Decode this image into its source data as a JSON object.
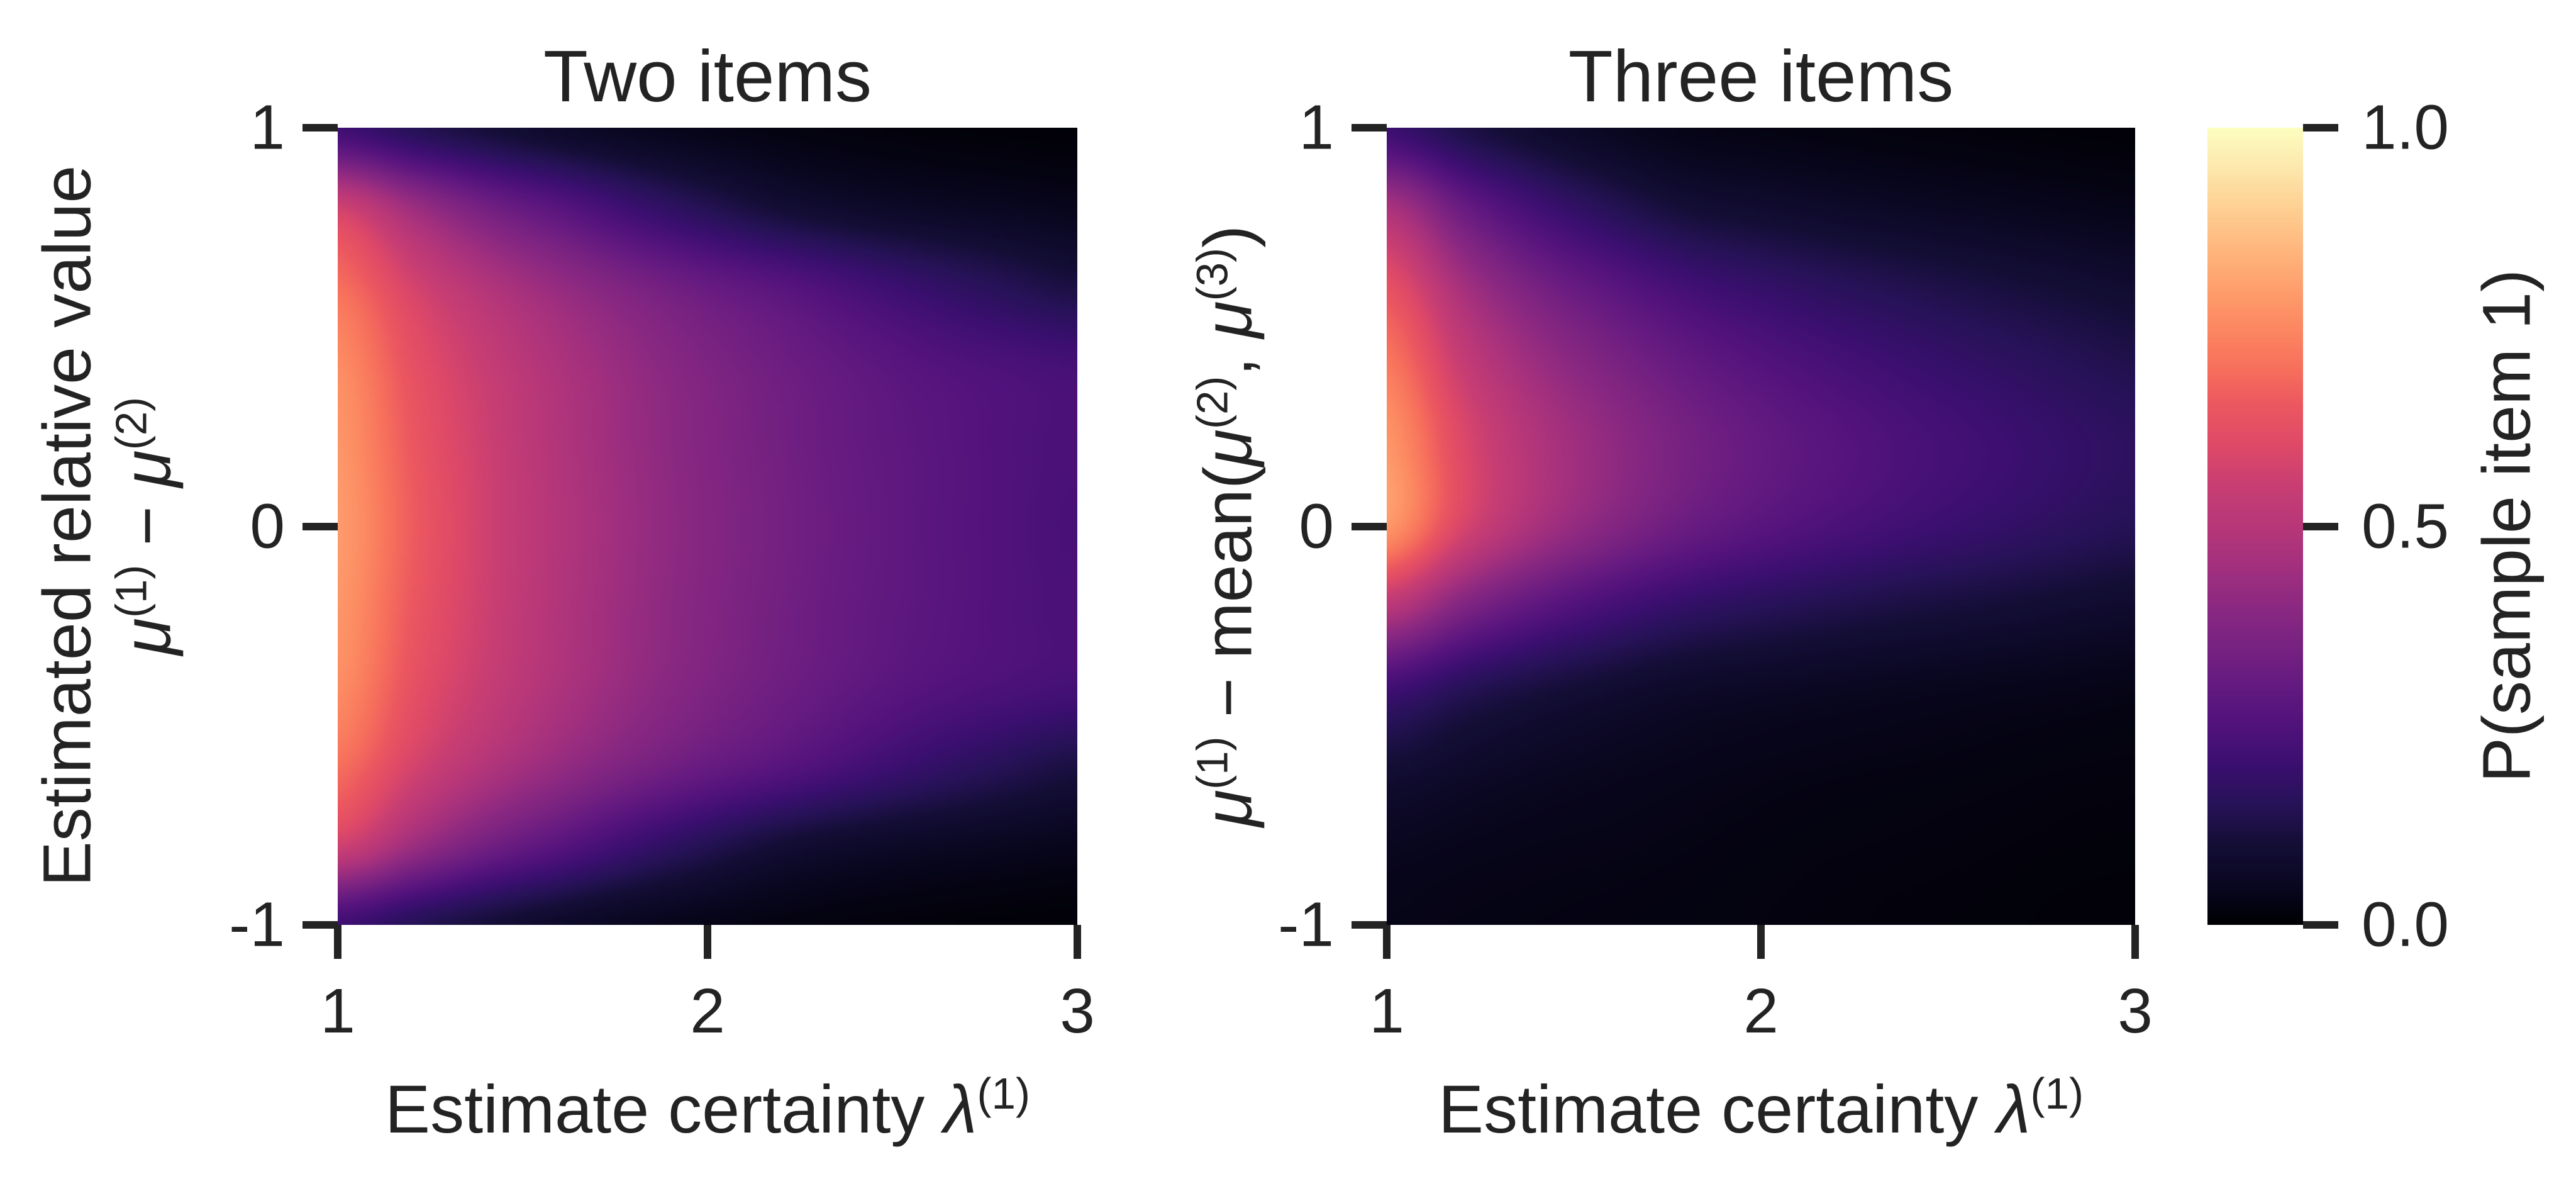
{
  "figure": {
    "background": "#ffffff",
    "text_color": "#232323"
  },
  "style": {
    "colormap": "magma",
    "colormap_stops": [
      "#000004",
      "#0a0722",
      "#140e36",
      "#271258",
      "#3b0f70",
      "#51127c",
      "#641a80",
      "#782281",
      "#8c2981",
      "#a3307e",
      "#b73779",
      "#c83e73",
      "#de4968",
      "#eb5760",
      "#f7705c",
      "#fc8861",
      "#fe9f6d",
      "#feb77e",
      "#fecf92",
      "#fde7ac",
      "#fcfdbf"
    ]
  },
  "colorbar": {
    "label": "P(sample item 1)",
    "tick_values": [
      1.0,
      0.5,
      0.0
    ],
    "tick_labels": [
      "1.0",
      "0.5",
      "0.0"
    ],
    "range": [
      0,
      1
    ]
  },
  "chart_data": [
    {
      "type": "heatmap",
      "title": "Two items",
      "xlabel_parts": [
        {
          "t": "Estimate certainty ",
          "s": "r"
        },
        {
          "t": "λ",
          "s": "i"
        },
        {
          "t": "(1)",
          "s": "sup"
        }
      ],
      "ylabel_line1": "Estimated relative value",
      "ylabel_line2_parts": [
        {
          "t": "μ",
          "s": "i"
        },
        {
          "t": "(1)",
          "s": "sup"
        },
        {
          "t": " − ",
          "s": "r"
        },
        {
          "t": "μ",
          "s": "i"
        },
        {
          "t": "(2)",
          "s": "sup"
        }
      ],
      "x_range": [
        1,
        3
      ],
      "y_range": [
        -1,
        1
      ],
      "x_tick_values": [
        1,
        2,
        3
      ],
      "x_tick_labels": [
        "1",
        "2",
        "3"
      ],
      "y_tick_values": [
        1,
        0,
        -1
      ],
      "y_tick_labels": [
        "1",
        "0",
        "-1"
      ],
      "value_range": [
        0,
        1
      ],
      "x": [
        1.0,
        1.2,
        1.4,
        1.6,
        1.8,
        2.0,
        2.2,
        2.4,
        2.6,
        2.8,
        3.0
      ],
      "y": [
        1.0,
        0.8,
        0.6,
        0.4,
        0.2,
        0.0,
        -0.2,
        -0.4,
        -0.6,
        -0.8,
        -1.0
      ],
      "values": [
        [
          0.21,
          0.15,
          0.105,
          0.07,
          0.047,
          0.032,
          0.022,
          0.016,
          0.012,
          0.009,
          0.007
        ],
        [
          0.57,
          0.44,
          0.34,
          0.27,
          0.2,
          0.145,
          0.1,
          0.075,
          0.06,
          0.05,
          0.04
        ],
        [
          0.7,
          0.58,
          0.49,
          0.42,
          0.36,
          0.31,
          0.27,
          0.225,
          0.185,
          0.15,
          0.12
        ],
        [
          0.76,
          0.63,
          0.545,
          0.475,
          0.415,
          0.365,
          0.325,
          0.29,
          0.26,
          0.24,
          0.225
        ],
        [
          0.78,
          0.65,
          0.56,
          0.485,
          0.425,
          0.375,
          0.335,
          0.3,
          0.275,
          0.25,
          0.235
        ],
        [
          0.79,
          0.66,
          0.565,
          0.49,
          0.43,
          0.38,
          0.34,
          0.305,
          0.275,
          0.25,
          0.23
        ],
        [
          0.78,
          0.65,
          0.56,
          0.485,
          0.425,
          0.375,
          0.335,
          0.3,
          0.275,
          0.25,
          0.235
        ],
        [
          0.76,
          0.63,
          0.545,
          0.475,
          0.415,
          0.365,
          0.325,
          0.29,
          0.26,
          0.24,
          0.225
        ],
        [
          0.7,
          0.58,
          0.49,
          0.42,
          0.36,
          0.31,
          0.27,
          0.225,
          0.185,
          0.15,
          0.12
        ],
        [
          0.57,
          0.44,
          0.34,
          0.27,
          0.2,
          0.145,
          0.1,
          0.075,
          0.06,
          0.05,
          0.04
        ],
        [
          0.21,
          0.15,
          0.105,
          0.07,
          0.047,
          0.032,
          0.022,
          0.016,
          0.012,
          0.009,
          0.007
        ]
      ]
    },
    {
      "type": "heatmap",
      "title": "Three items",
      "xlabel_parts": [
        {
          "t": "Estimate certainty ",
          "s": "r"
        },
        {
          "t": "λ",
          "s": "i"
        },
        {
          "t": "(1)",
          "s": "sup"
        }
      ],
      "ylabel_parts": [
        {
          "t": "μ",
          "s": "i"
        },
        {
          "t": "(1)",
          "s": "sup"
        },
        {
          "t": " − mean(",
          "s": "r"
        },
        {
          "t": "μ",
          "s": "i"
        },
        {
          "t": "(2)",
          "s": "sup"
        },
        {
          "t": ", ",
          "s": "r"
        },
        {
          "t": "μ",
          "s": "i"
        },
        {
          "t": "(3)",
          "s": "sup"
        },
        {
          "t": ")",
          "s": "r"
        }
      ],
      "x_range": [
        1,
        3
      ],
      "y_range": [
        -1,
        1
      ],
      "x_tick_values": [
        1,
        2,
        3
      ],
      "x_tick_labels": [
        "1",
        "2",
        "3"
      ],
      "y_tick_values": [
        1,
        0,
        -1
      ],
      "y_tick_labels": [
        "1",
        "0",
        "-1"
      ],
      "value_range": [
        0,
        1
      ],
      "x": [
        1.0,
        1.2,
        1.4,
        1.6,
        1.8,
        2.0,
        2.2,
        2.4,
        2.6,
        2.8,
        3.0
      ],
      "y": [
        1.0,
        0.8,
        0.6,
        0.4,
        0.2,
        0.0,
        -0.2,
        -0.4,
        -0.6,
        -0.8,
        -1.0
      ],
      "values": [
        [
          0.2,
          0.127,
          0.081,
          0.051,
          0.031,
          0.025,
          0.02,
          0.016,
          0.013,
          0.01,
          0.008
        ],
        [
          0.47,
          0.314,
          0.214,
          0.148,
          0.102,
          0.084,
          0.07,
          0.058,
          0.049,
          0.04,
          0.033
        ],
        [
          0.63,
          0.458,
          0.348,
          0.276,
          0.219,
          0.185,
          0.158,
          0.136,
          0.117,
          0.1,
          0.086
        ],
        [
          0.72,
          0.546,
          0.436,
          0.362,
          0.303,
          0.26,
          0.228,
          0.2,
          0.176,
          0.154,
          0.135
        ],
        [
          0.78,
          0.599,
          0.484,
          0.408,
          0.345,
          0.3,
          0.265,
          0.235,
          0.21,
          0.185,
          0.165
        ],
        [
          0.78,
          0.584,
          0.461,
          0.379,
          0.314,
          0.271,
          0.238,
          0.21,
          0.187,
          0.164,
          0.145
        ],
        [
          0.51,
          0.371,
          0.283,
          0.223,
          0.179,
          0.154,
          0.134,
          0.117,
          0.104,
          0.09,
          0.079
        ],
        [
          0.22,
          0.157,
          0.118,
          0.092,
          0.072,
          0.062,
          0.054,
          0.047,
          0.041,
          0.036,
          0.031
        ],
        [
          0.1,
          0.074,
          0.057,
          0.046,
          0.038,
          0.032,
          0.028,
          0.025,
          0.022,
          0.019,
          0.017
        ],
        [
          0.048,
          0.039,
          0.033,
          0.03,
          0.026,
          0.022,
          0.019,
          0.017,
          0.015,
          0.013,
          0.012
        ],
        [
          0.032,
          0.027,
          0.025,
          0.023,
          0.021,
          0.018,
          0.015,
          0.013,
          0.012,
          0.01,
          0.009
        ]
      ]
    }
  ]
}
